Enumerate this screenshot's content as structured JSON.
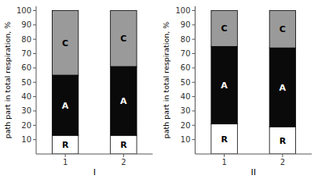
{
  "chart_data": [
    {
      "type": "bar",
      "stacked": true,
      "categories": [
        "1",
        "2"
      ],
      "series": [
        {
          "name": "R",
          "color": "#ffffff",
          "values": [
            13,
            13
          ]
        },
        {
          "name": "A",
          "color": "#0a0a0a",
          "values": [
            42,
            48
          ]
        },
        {
          "name": "C",
          "color": "#9a9a9a",
          "values": [
            45,
            39
          ]
        }
      ],
      "x_label": "I",
      "y_label": "path part in total respiration, %",
      "ylim": [
        0,
        103
      ],
      "yticks": [
        10,
        20,
        30,
        40,
        50,
        60,
        70,
        80,
        90,
        100
      ]
    },
    {
      "type": "bar",
      "stacked": true,
      "categories": [
        "1",
        "2"
      ],
      "series": [
        {
          "name": "R",
          "color": "#ffffff",
          "values": [
            21,
            19
          ]
        },
        {
          "name": "A",
          "color": "#0a0a0a",
          "values": [
            54,
            55
          ]
        },
        {
          "name": "C",
          "color": "#9a9a9a",
          "values": [
            25,
            26
          ]
        }
      ],
      "x_label": "II",
      "y_label": "path part in total respiration, %",
      "ylim": [
        0,
        103
      ],
      "yticks": [
        10,
        20,
        30,
        40,
        50,
        60,
        70,
        80,
        90,
        100
      ]
    }
  ]
}
